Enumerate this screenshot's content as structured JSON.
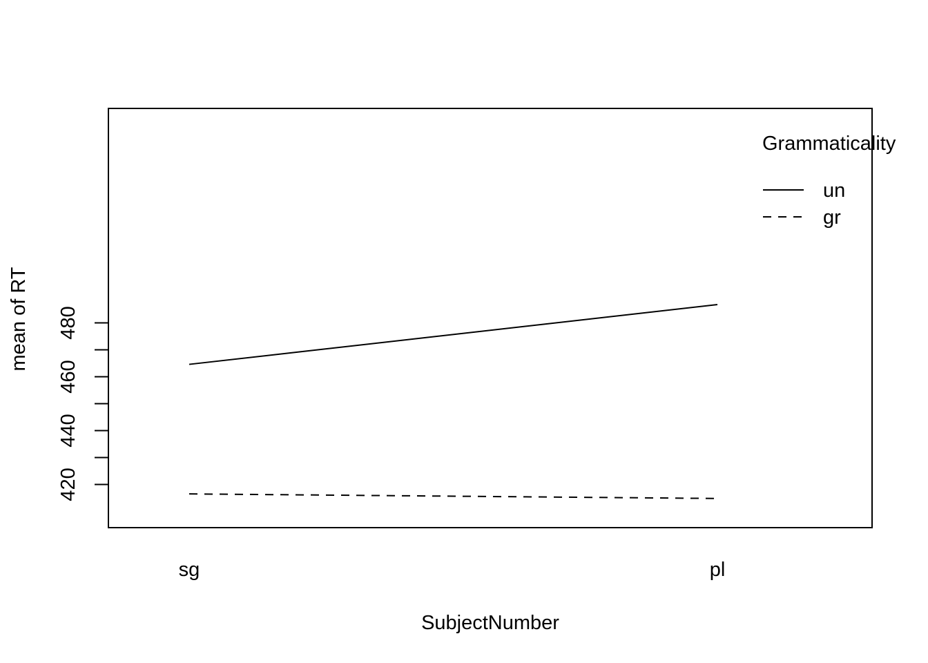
{
  "chart_data": {
    "type": "line",
    "title": "",
    "xlabel": "SubjectNumber",
    "ylabel": "mean of  RT",
    "categories": [
      "sg",
      "pl"
    ],
    "y_ticks": [
      420,
      440,
      460,
      480
    ],
    "y_minor_ticks": [
      430,
      450,
      470
    ],
    "ylim": [
      412,
      489
    ],
    "grid": false,
    "legend": {
      "title": "Grammaticality",
      "position": "top-right",
      "frame": false
    },
    "series": [
      {
        "name": "un",
        "values": [
          464.6,
          486.8
        ],
        "line_style": "solid",
        "color": "#000000"
      },
      {
        "name": "gr",
        "values": [
          416.5,
          414.8
        ],
        "line_style": "dashed",
        "color": "#000000"
      }
    ]
  }
}
